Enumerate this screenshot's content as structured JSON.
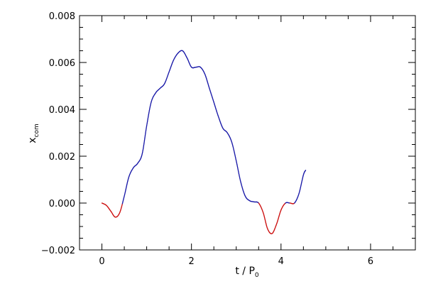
{
  "chart_data": {
    "type": "line",
    "xlabel": "t / P",
    "xlabel_sub": "0",
    "ylabel": "x",
    "ylabel_sub": "com",
    "xlim": [
      -0.5,
      7
    ],
    "ylim": [
      -0.002,
      0.008
    ],
    "x_ticks": [
      0,
      2,
      4,
      6
    ],
    "x_tick_labels": [
      "0",
      "2",
      "4",
      "6"
    ],
    "y_ticks": [
      -0.002,
      0.0,
      0.002,
      0.004,
      0.006,
      0.008
    ],
    "y_tick_labels": [
      "−0.002",
      "0.000",
      "0.002",
      "0.004",
      "0.006",
      "0.008"
    ],
    "grid": false,
    "positive_color": "#1a1aa8",
    "negative_color": "#cc1111",
    "series": [
      {
        "x": [
          0.0,
          0.1,
          0.2,
          0.3,
          0.4,
          0.5,
          0.6,
          0.7,
          0.8,
          0.9,
          1.0,
          1.1,
          1.2,
          1.3,
          1.4,
          1.5,
          1.6,
          1.7,
          1.8,
          1.9,
          2.0,
          2.1,
          2.2,
          2.3,
          2.4,
          2.5,
          2.6,
          2.7,
          2.8,
          2.9,
          3.0,
          3.1,
          3.2,
          3.3,
          3.4,
          3.5,
          3.6,
          3.7,
          3.8,
          3.9,
          4.0,
          4.1,
          4.2,
          4.3,
          4.4,
          4.5,
          4.55
        ],
        "y": [
          0.0,
          -0.0001,
          -0.00035,
          -0.0006,
          -0.0004,
          0.0003,
          0.0011,
          0.0015,
          0.0017,
          0.0021,
          0.0033,
          0.0043,
          0.0047,
          0.0049,
          0.0051,
          0.0056,
          0.0061,
          0.0064,
          0.0065,
          0.0062,
          0.0058,
          0.0058,
          0.0058,
          0.0055,
          0.0049,
          0.0043,
          0.0037,
          0.0032,
          0.003,
          0.0026,
          0.0018,
          0.0009,
          0.0003,
          0.0001,
          5e-05,
          0.0,
          -0.0004,
          -0.0011,
          -0.0013,
          -0.0009,
          -0.0003,
          0.0,
          0.0,
          0.0,
          0.0004,
          0.0012,
          0.0014
        ]
      }
    ]
  }
}
